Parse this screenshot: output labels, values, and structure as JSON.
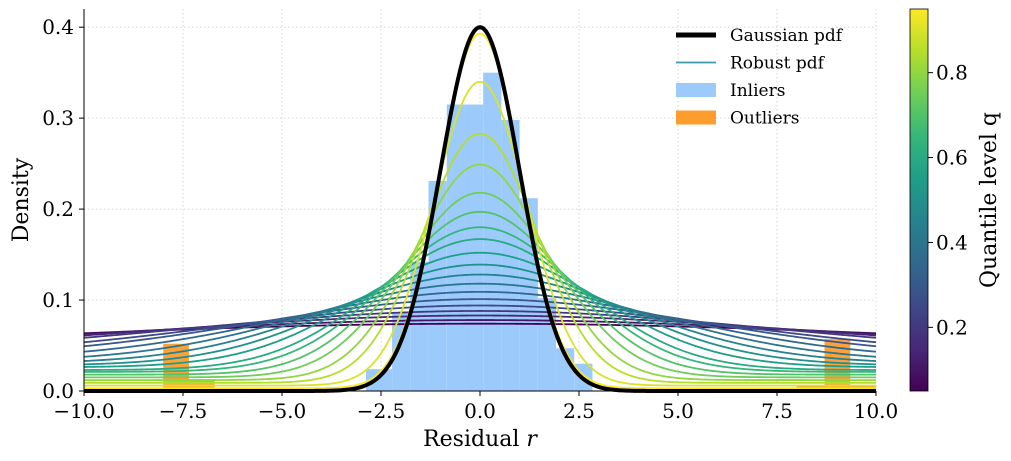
{
  "chart_data": {
    "type": "line",
    "title": "",
    "xlabel": "Residual r",
    "xlabel_text": "Residual ",
    "xlabel_var": "r",
    "ylabel": "Density",
    "xlim": [
      -10.0,
      10.0
    ],
    "ylim": [
      0.0,
      0.42
    ],
    "x_ticks": [
      -10.0,
      -7.5,
      -5.0,
      -2.5,
      0.0,
      2.5,
      5.0,
      7.5,
      10.0
    ],
    "x_tick_labels": [
      "−10.0",
      "−7.5",
      "−5.0",
      "−2.5",
      "0.0",
      "2.5",
      "5.0",
      "7.5",
      "10.0"
    ],
    "y_ticks": [
      0.0,
      0.1,
      0.2,
      0.3,
      0.4
    ],
    "y_tick_labels": [
      "0.0",
      "0.1",
      "0.2",
      "0.3",
      "0.4"
    ],
    "grid": true,
    "legend_position": "top-right",
    "legend": [
      {
        "label": "Gaussian pdf",
        "kind": "thick-line",
        "color": "#000000"
      },
      {
        "label": "Robust pdf",
        "kind": "line",
        "color": "#3a9aa8"
      },
      {
        "label": "Inliers",
        "kind": "patch",
        "color": "#9ccbfb"
      },
      {
        "label": "Outliers",
        "kind": "patch",
        "color": "#fd9d2e"
      }
    ],
    "gaussian": {
      "mu": 0.0,
      "sigma": 1.0,
      "peak": 0.4
    },
    "robust_curves": {
      "q_levels": [
        0.05,
        0.1,
        0.15,
        0.2,
        0.25,
        0.3,
        0.35,
        0.4,
        0.45,
        0.5,
        0.55,
        0.6,
        0.65,
        0.7,
        0.75,
        0.8,
        0.85,
        0.9,
        0.95
      ],
      "peaks": [
        0.074,
        0.078,
        0.083,
        0.088,
        0.094,
        0.101,
        0.109,
        0.118,
        0.128,
        0.139,
        0.152,
        0.167,
        0.18,
        0.197,
        0.218,
        0.249,
        0.283,
        0.34,
        0.393
      ],
      "tails": [
        0.042,
        0.041,
        0.04,
        0.039,
        0.037,
        0.036,
        0.034,
        0.032,
        0.03,
        0.028,
        0.026,
        0.023,
        0.021,
        0.018,
        0.015,
        0.012,
        0.009,
        0.006,
        0.003
      ]
    },
    "inlier_histogram": {
      "bin_edges": [
        -2.88,
        -2.22,
        -1.76,
        -1.3,
        -0.84,
        -0.38,
        0.08,
        0.54,
        1.0,
        1.46,
        1.92,
        2.38,
        2.84
      ],
      "densities": [
        0.024,
        0.087,
        0.142,
        0.231,
        0.315,
        0.315,
        0.35,
        0.298,
        0.212,
        0.102,
        0.047,
        0.03
      ]
    },
    "outlier_histogram": {
      "bin_edges": [
        -8.0,
        -7.35,
        -6.7
      ],
      "densities": [
        0.052,
        0.013
      ],
      "bin_edges_right": [
        8.0,
        8.7,
        9.35,
        10.0
      ],
      "densities_right": [
        0.005,
        0.057,
        0.005
      ]
    },
    "colorbar": {
      "label": "Quantile level q",
      "range": [
        0.05,
        0.95
      ],
      "ticks": [
        0.2,
        0.4,
        0.6,
        0.8
      ],
      "tick_labels": [
        "0.2",
        "0.4",
        "0.6",
        "0.8"
      ],
      "colormap": "viridis"
    },
    "colors": {
      "inlier": "#9ccbfb",
      "outlier": "#fd9d2e",
      "gaussian": "#000000",
      "grid": "#cccccc",
      "viridis": [
        "#440154",
        "#482878",
        "#3e4989",
        "#31688e",
        "#26828e",
        "#1f9e89",
        "#35b779",
        "#6ece58",
        "#b5de2b",
        "#fde725"
      ]
    }
  }
}
